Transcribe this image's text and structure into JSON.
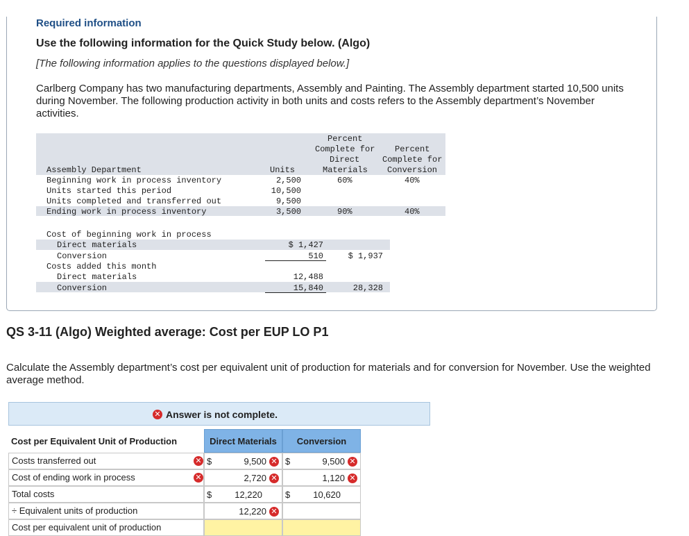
{
  "header": {
    "required": "Required information",
    "use_line": "Use the following information for the Quick Study below. (Algo)",
    "applies": "[The following information applies to the questions displayed below.]",
    "paragraph": "Carlberg Company has two manufacturing departments, Assembly and Painting. The Assembly department started 10,500 units during November. The following production activity in both units and costs refers to the Assembly department’s November activities."
  },
  "production_table": {
    "col_units": "Units",
    "col_dm": [
      "Percent",
      "Complete for",
      "Direct",
      "Materials"
    ],
    "col_conv": [
      "Percent",
      "Complete for",
      "Conversion"
    ],
    "rows": [
      {
        "label": "Assembly Department",
        "units": "",
        "dm": "",
        "conv": ""
      },
      {
        "label": "Beginning work in process inventory",
        "units": "2,500",
        "dm": "60%",
        "conv": "40%"
      },
      {
        "label": "Units started this period",
        "units": "10,500",
        "dm": "",
        "conv": ""
      },
      {
        "label": "Units completed and transferred out",
        "units": "9,500",
        "dm": "",
        "conv": ""
      },
      {
        "label": "Ending work in process inventory",
        "units": "3,500",
        "dm": "90%",
        "conv": "40%"
      }
    ]
  },
  "cost_table": {
    "beg_wip": "Cost of beginning work in process",
    "dm": "Direct materials",
    "conv": "Conversion",
    "added": "Costs added this month",
    "dm2": "Direct materials",
    "conv2": "Conversion",
    "v_dm": "$ 1,427",
    "v_conv": "510",
    "v_beg_total": "$ 1,937",
    "v_dm2": "12,488",
    "v_conv2": "15,840",
    "v_added_total": "28,328"
  },
  "question": {
    "title": "QS 3-11 (Algo) Weighted average: Cost per EUP LO P1",
    "text": "Calculate the Assembly department’s cost per equivalent unit of production for materials and for conversion for November. Use the weighted average method."
  },
  "answer": {
    "banner": "Answer is not complete.",
    "header_label": "Cost per Equivalent Unit of Production",
    "header_dm": "Direct Materials",
    "header_conv": "Conversion",
    "rows": [
      {
        "label": "Costs transferred out",
        "dm_dollar": "$",
        "dm": "9,500",
        "conv_dollar": "$",
        "conv": "9,500"
      },
      {
        "label": "Cost of ending work in process",
        "dm_dollar": "",
        "dm": "2,720",
        "conv_dollar": "",
        "conv": "1,120"
      },
      {
        "label": "Total costs",
        "dm_dollar": "$",
        "dm": "12,220",
        "conv_dollar": "$",
        "conv": "10,620"
      },
      {
        "label": "÷ Equivalent units of production",
        "dm_dollar": "",
        "dm": "12,220",
        "conv_dollar": "",
        "conv": ""
      },
      {
        "label": "Cost per equivalent unit of production",
        "dm_dollar": "",
        "dm": "",
        "conv_dollar": "",
        "conv": ""
      }
    ]
  },
  "colors": {
    "title_blue": "#1f4f86",
    "header_blue": "#7fb3e6",
    "banner_blue": "#dbeaf7",
    "error_red": "#d62b2b",
    "input_yellow": "#fff3a3"
  },
  "icons": {
    "incorrect": "x-circle-icon"
  }
}
